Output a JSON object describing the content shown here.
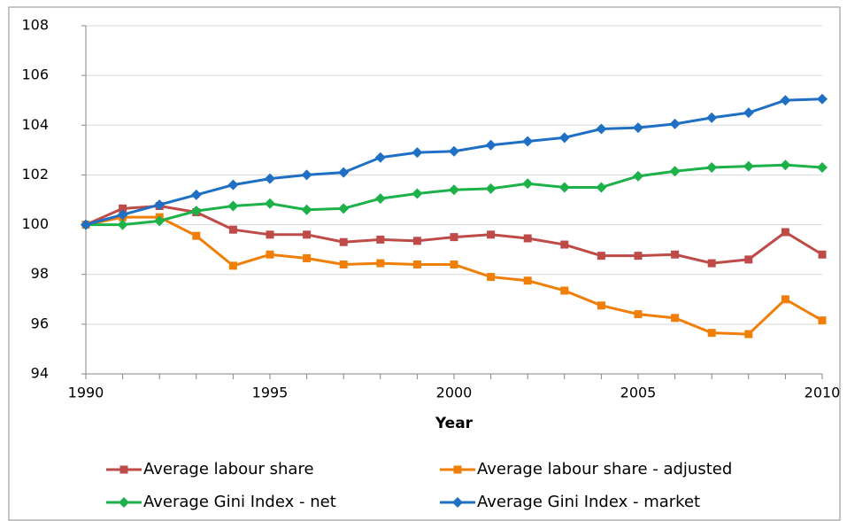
{
  "chart_data": {
    "type": "line",
    "x_label": "Year",
    "x": [
      1990,
      1991,
      1992,
      1993,
      1994,
      1995,
      1996,
      1997,
      1998,
      1999,
      2000,
      2001,
      2002,
      2003,
      2004,
      2005,
      2006,
      2007,
      2008,
      2009,
      2010
    ],
    "xlim": [
      1990,
      2010
    ],
    "xticks": [
      1990,
      1995,
      2000,
      2005,
      2010
    ],
    "ylim": [
      94,
      108
    ],
    "yticks": [
      94,
      96,
      98,
      100,
      102,
      104,
      106,
      108
    ],
    "grid": true,
    "series": [
      {
        "name": "Average labour share",
        "color": "#be4b48",
        "marker": "square",
        "values": [
          100,
          100.65,
          100.75,
          100.5,
          99.8,
          99.6,
          99.6,
          99.3,
          99.4,
          99.35,
          99.5,
          99.6,
          99.45,
          99.2,
          98.75,
          98.75,
          98.8,
          98.45,
          98.6,
          99.7,
          98.8
        ]
      },
      {
        "name": "Average labour share - adjusted",
        "color": "#f07f09",
        "marker": "square",
        "values": [
          100,
          100.3,
          100.3,
          99.55,
          98.35,
          98.8,
          98.65,
          98.4,
          98.45,
          98.4,
          98.4,
          97.9,
          97.75,
          97.35,
          96.75,
          96.4,
          96.25,
          95.65,
          95.6,
          97.0,
          96.15
        ]
      },
      {
        "name": "Average Gini Index - net",
        "color": "#1db14a",
        "marker": "diamond",
        "values": [
          100,
          100.0,
          100.15,
          100.55,
          100.75,
          100.85,
          100.6,
          100.65,
          101.05,
          101.25,
          101.4,
          101.45,
          101.65,
          101.5,
          101.5,
          101.95,
          102.15,
          102.3,
          102.35,
          102.4,
          102.3
        ]
      },
      {
        "name": "Average Gini Index - market",
        "color": "#1f6fc5",
        "marker": "diamond",
        "values": [
          100,
          100.4,
          100.8,
          101.2,
          101.6,
          101.85,
          102.0,
          102.1,
          102.7,
          102.9,
          102.95,
          103.2,
          103.35,
          103.5,
          103.85,
          103.9,
          104.05,
          104.3,
          104.5,
          105.0,
          105.05
        ]
      }
    ]
  }
}
